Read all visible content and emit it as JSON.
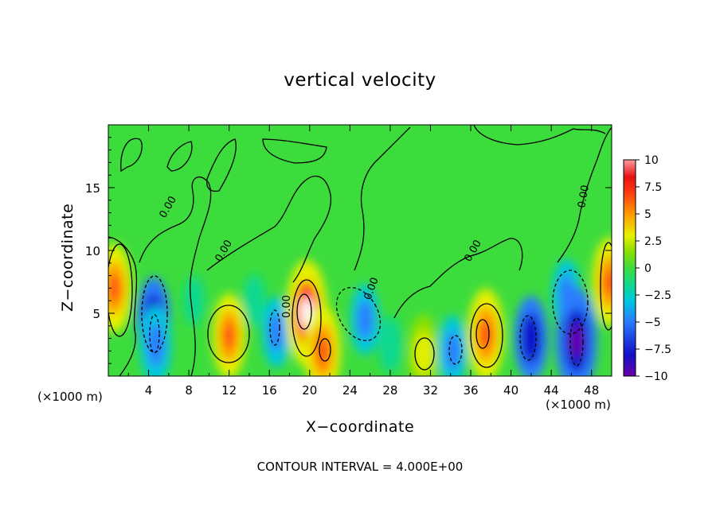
{
  "chart_data": {
    "type": "heatmap",
    "title": "vertical velocity",
    "xlabel": "X−coordinate",
    "ylabel": "Z−coordinate",
    "x_unit_label": "(×1000 m)",
    "x_ticks": [
      4,
      8,
      12,
      16,
      20,
      24,
      28,
      32,
      36,
      40,
      44,
      48
    ],
    "y_ticks": [
      5,
      10,
      15
    ],
    "xlim": [
      0,
      50
    ],
    "ylim": [
      0,
      20
    ],
    "colorbar": {
      "ticks": [
        10,
        7.5,
        5,
        2.5,
        0,
        -2.5,
        -5,
        -7.5,
        -10
      ],
      "tick_labels": [
        "10",
        "7.5",
        "5",
        "2.5",
        "0",
        "−2.5",
        "−5",
        "−7.5",
        "−10"
      ],
      "range": [
        -10,
        10
      ]
    },
    "contour_labels": [
      "0.00"
    ],
    "contour_interval_text": "CONTOUR INTERVAL = 4.000E+00",
    "features": [
      {
        "x": 0.6,
        "z": 7.0,
        "value": 7.5
      },
      {
        "x": 4.5,
        "z": 4.5,
        "value": -7
      },
      {
        "x": 4.7,
        "z": 2.5,
        "value": -6
      },
      {
        "x": 8.5,
        "z": 6.0,
        "value": -2
      },
      {
        "x": 12.0,
        "z": 3.2,
        "value": 7
      },
      {
        "x": 14.5,
        "z": 6.0,
        "value": -2.5
      },
      {
        "x": 16.7,
        "z": 3.5,
        "value": -5
      },
      {
        "x": 19.7,
        "z": 5.0,
        "value": 10
      },
      {
        "x": 21.3,
        "z": 2.0,
        "value": 8
      },
      {
        "x": 25.5,
        "z": 4.5,
        "value": -5
      },
      {
        "x": 28.0,
        "z": 2.5,
        "value": -3
      },
      {
        "x": 31.3,
        "z": 1.8,
        "value": 6
      },
      {
        "x": 34.2,
        "z": 2.0,
        "value": -5
      },
      {
        "x": 37.5,
        "z": 3.3,
        "value": 8
      },
      {
        "x": 42.0,
        "z": 3.0,
        "value": -7
      },
      {
        "x": 45.5,
        "z": 6.5,
        "value": -5
      },
      {
        "x": 46.5,
        "z": 2.8,
        "value": -10
      },
      {
        "x": 49.8,
        "z": 7.5,
        "value": 7.5
      }
    ]
  }
}
